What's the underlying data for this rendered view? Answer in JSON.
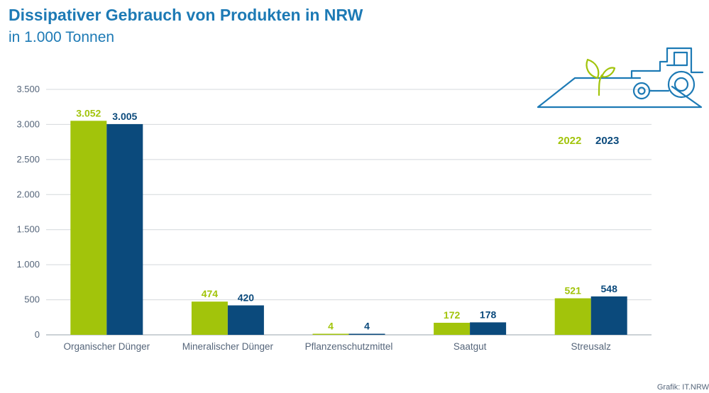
{
  "title": "Dissipativer Gebrauch von Produkten in NRW",
  "subtitle": "in 1.000 Tonnen",
  "source": "Grafik: IT.NRW",
  "colors": {
    "accent": "#1d7ab5",
    "series_2022": "#a2c40b",
    "series_2023": "#0b4a7c"
  },
  "chart_data": {
    "type": "bar",
    "title": "Dissipativer Gebrauch von Produkten in NRW",
    "subtitle": "in 1.000 Tonnen",
    "xlabel": "",
    "ylabel": "",
    "categories": [
      "Organischer Dünger",
      "Mineralischer Dünger",
      "Pflanzenschutzmittel",
      "Saatgut",
      "Streusalz"
    ],
    "series": [
      {
        "name": "2022",
        "values": [
          3052,
          474,
          4,
          172,
          521
        ],
        "labels": [
          "3.052",
          "474",
          "4",
          "172",
          "521"
        ]
      },
      {
        "name": "2023",
        "values": [
          3005,
          420,
          4,
          178,
          548
        ],
        "labels": [
          "3.005",
          "420",
          "4",
          "178",
          "548"
        ]
      }
    ],
    "ylim": [
      0,
      3500
    ],
    "yticks": [
      0,
      500,
      1000,
      1500,
      2000,
      2500,
      3000,
      3500
    ],
    "ytick_labels": [
      "0",
      "500",
      "1.000",
      "1.500",
      "2.000",
      "2.500",
      "3.000",
      "3.500"
    ],
    "grid": true,
    "legend": "top-right"
  }
}
